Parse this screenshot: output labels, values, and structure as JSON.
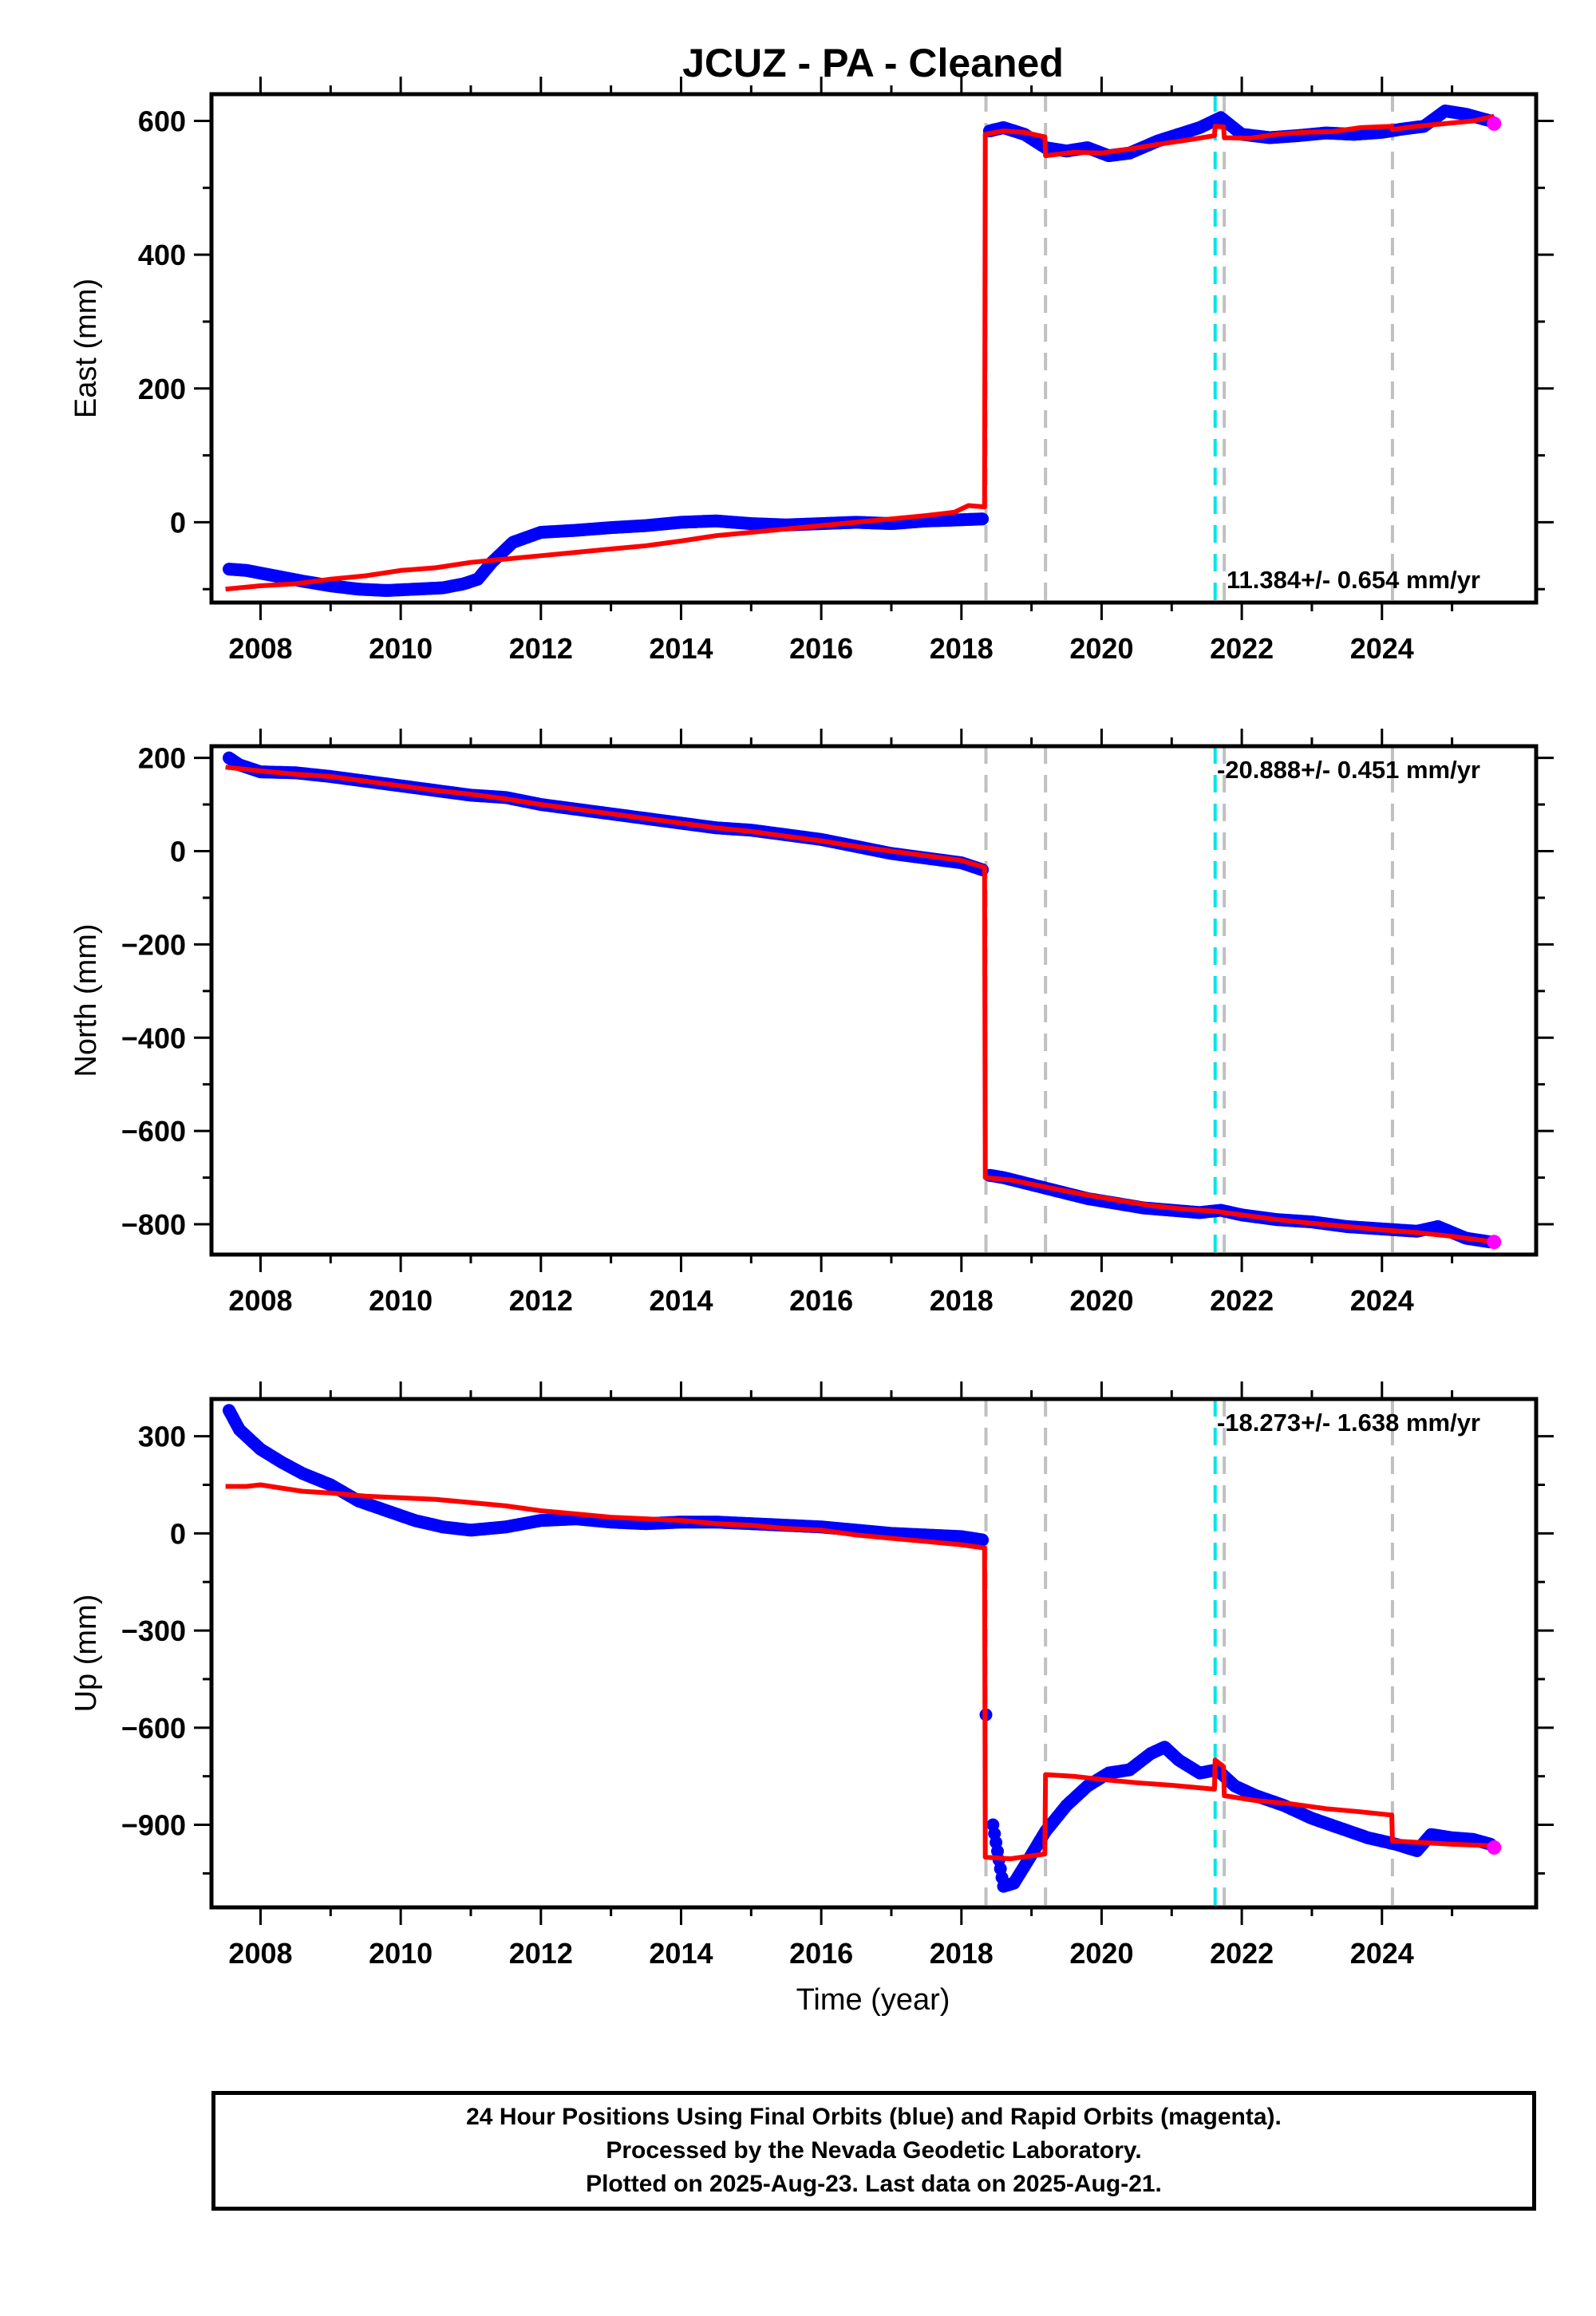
{
  "title": "JCUZ  - PA - Cleaned",
  "xlabel": "Time (year)",
  "footer": {
    "line1": "24 Hour Positions Using Final Orbits (blue) and Rapid Orbits (magenta).",
    "line2": "Processed by the Nevada Geodetic Laboratory.",
    "line3": "Plotted on 2025-Aug-23. Last data on 2025-Aug-21."
  },
  "colors": {
    "data": "#0000ff",
    "model": "#ff0000",
    "rapid": "#ff00ff",
    "equipment_change": "#c0c0c0",
    "earthquake": "#00e5e5"
  },
  "chart_data": [
    {
      "type": "scatter",
      "panel": "east",
      "ylabel": "East (mm)",
      "xlim": [
        2007.3,
        2026.2
      ],
      "ylim": [
        -120,
        640
      ],
      "xticks": [
        2008,
        2010,
        2012,
        2014,
        2016,
        2018,
        2020,
        2022,
        2024
      ],
      "yticks": [
        0,
        200,
        400,
        600
      ],
      "ytick_labels": [
        "0",
        "200",
        "400",
        "600"
      ],
      "rate_text": "11.384+/- 0.654 mm/yr",
      "rate_position": "bottom-right",
      "equipment_changes": [
        2018.35,
        2019.2,
        2021.75,
        2024.15
      ],
      "earthquakes": [
        2021.62
      ],
      "series": [
        {
          "role": "data",
          "x": [
            2007.55,
            2007.8,
            2008.2,
            2008.6,
            2009.0,
            2009.4,
            2009.8,
            2010.2,
            2010.6,
            2010.9,
            2011.1,
            2011.3,
            2011.6,
            2012.0,
            2012.5,
            2013.0,
            2013.5,
            2014.0,
            2014.5,
            2015.0,
            2015.5,
            2016.0,
            2016.5,
            2017.0,
            2017.5,
            2017.8,
            2018.3,
            2018.4,
            2018.6,
            2018.9,
            2019.2,
            2019.5,
            2019.8,
            2020.1,
            2020.4,
            2020.8,
            2021.1,
            2021.4,
            2021.7,
            2022.0,
            2022.4,
            2022.8,
            2023.2,
            2023.6,
            2024.0,
            2024.3,
            2024.6,
            2024.9,
            2025.2,
            2025.55
          ],
          "y": [
            -70,
            -72,
            -80,
            -88,
            -95,
            -100,
            -102,
            -100,
            -98,
            -92,
            -85,
            -60,
            -30,
            -15,
            -12,
            -8,
            -5,
            0,
            2,
            -2,
            -4,
            -2,
            0,
            -2,
            2,
            3,
            5,
            585,
            590,
            580,
            560,
            555,
            560,
            548,
            552,
            570,
            580,
            590,
            605,
            580,
            575,
            578,
            582,
            580,
            583,
            588,
            592,
            615,
            610,
            600
          ]
        },
        {
          "role": "rapid",
          "x": [
            2025.6
          ],
          "y": [
            596
          ]
        },
        {
          "role": "model",
          "x": [
            2007.5,
            2008.0,
            2008.5,
            2009.0,
            2009.5,
            2010.0,
            2010.5,
            2011.0,
            2011.5,
            2012.0,
            2012.5,
            2013.0,
            2013.5,
            2014.0,
            2014.5,
            2015.0,
            2015.5,
            2016.0,
            2016.5,
            2017.0,
            2017.5,
            2017.9,
            2018.1,
            2018.33,
            2018.34,
            2018.6,
            2018.9,
            2019.19,
            2019.2,
            2019.6,
            2020.0,
            2020.4,
            2020.8,
            2021.2,
            2021.61,
            2021.62,
            2021.74,
            2021.75,
            2022.1,
            2022.5,
            2022.9,
            2023.3,
            2023.7,
            2024.14,
            2024.15,
            2024.5,
            2024.9,
            2025.3,
            2025.6
          ],
          "y": [
            -100,
            -95,
            -92,
            -85,
            -80,
            -72,
            -68,
            -60,
            -55,
            -50,
            -45,
            -40,
            -35,
            -28,
            -20,
            -15,
            -10,
            -5,
            0,
            5,
            10,
            15,
            25,
            23,
            580,
            585,
            583,
            576,
            548,
            553,
            552,
            558,
            565,
            571,
            578,
            592,
            591,
            575,
            574,
            580,
            583,
            584,
            590,
            592,
            587,
            592,
            596,
            600,
            607
          ]
        }
      ]
    },
    {
      "type": "scatter",
      "panel": "north",
      "ylabel": "North (mm)",
      "xlim": [
        2007.3,
        2026.2
      ],
      "ylim": [
        -865,
        225
      ],
      "xticks": [
        2008,
        2010,
        2012,
        2014,
        2016,
        2018,
        2020,
        2022,
        2024
      ],
      "yticks": [
        -800,
        -600,
        -400,
        -200,
        0,
        200
      ],
      "ytick_labels": [
        "−800",
        "−600",
        "−400",
        "−200",
        "0",
        "200"
      ],
      "rate_text": "-20.888+/- 0.451 mm/yr",
      "rate_position": "top-right",
      "equipment_changes": [
        2018.35,
        2019.2,
        2021.75,
        2024.15
      ],
      "earthquakes": [
        2021.62
      ],
      "series": [
        {
          "role": "data",
          "x": [
            2007.55,
            2007.7,
            2008.0,
            2008.5,
            2009.0,
            2009.5,
            2010.0,
            2010.5,
            2011.0,
            2011.5,
            2012.0,
            2012.5,
            2013.0,
            2013.5,
            2014.0,
            2014.5,
            2015.0,
            2015.5,
            2016.0,
            2016.5,
            2017.0,
            2017.5,
            2018.0,
            2018.3,
            2018.4,
            2018.6,
            2019.0,
            2019.4,
            2019.8,
            2020.2,
            2020.6,
            2021.0,
            2021.4,
            2021.7,
            2022.0,
            2022.5,
            2023.0,
            2023.5,
            2024.0,
            2024.5,
            2024.8,
            2025.2,
            2025.55
          ],
          "y": [
            200,
            185,
            170,
            168,
            160,
            150,
            140,
            130,
            120,
            115,
            100,
            90,
            80,
            70,
            60,
            50,
            45,
            35,
            25,
            10,
            -5,
            -15,
            -25,
            -40,
            -695,
            -700,
            -715,
            -730,
            -745,
            -755,
            -765,
            -770,
            -775,
            -770,
            -780,
            -790,
            -795,
            -805,
            -810,
            -815,
            -805,
            -830,
            -838
          ]
        },
        {
          "role": "rapid",
          "x": [
            2025.6
          ],
          "y": [
            -838
          ]
        },
        {
          "role": "model",
          "x": [
            2007.5,
            2008.0,
            2008.5,
            2009.0,
            2009.5,
            2010.0,
            2010.5,
            2011.0,
            2011.5,
            2012.0,
            2012.5,
            2013.0,
            2013.5,
            2014.0,
            2014.5,
            2015.0,
            2015.5,
            2016.0,
            2016.5,
            2017.0,
            2017.5,
            2018.0,
            2018.33,
            2018.34,
            2018.7,
            2019.2,
            2019.7,
            2020.2,
            2020.7,
            2021.2,
            2021.62,
            2022.0,
            2022.5,
            2023.0,
            2023.5,
            2024.0,
            2024.5,
            2025.0,
            2025.6
          ],
          "y": [
            180,
            172,
            165,
            160,
            150,
            140,
            130,
            122,
            112,
            100,
            90,
            80,
            70,
            60,
            50,
            42,
            32,
            22,
            10,
            0,
            -10,
            -20,
            -35,
            -700,
            -705,
            -720,
            -735,
            -748,
            -760,
            -768,
            -772,
            -780,
            -790,
            -798,
            -805,
            -812,
            -818,
            -826,
            -838
          ]
        }
      ]
    },
    {
      "type": "scatter",
      "panel": "up",
      "ylabel": "Up (mm)",
      "xlim": [
        2007.3,
        2026.2
      ],
      "ylim": [
        -1155,
        415
      ],
      "xticks": [
        2008,
        2010,
        2012,
        2014,
        2016,
        2018,
        2020,
        2022,
        2024
      ],
      "yticks": [
        -900,
        -600,
        -300,
        0,
        300
      ],
      "ytick_labels": [
        "−900",
        "−600",
        "−300",
        "0",
        "300"
      ],
      "rate_text": "-18.273+/- 1.638 mm/yr",
      "rate_position": "top-right",
      "equipment_changes": [
        2018.35,
        2019.2,
        2021.75,
        2024.15
      ],
      "earthquakes": [
        2021.62
      ],
      "series": [
        {
          "role": "data",
          "x": [
            2007.55,
            2007.7,
            2008.0,
            2008.3,
            2008.6,
            2009.0,
            2009.4,
            2009.8,
            2010.2,
            2010.6,
            2011.0,
            2011.5,
            2012.0,
            2012.5,
            2013.0,
            2013.5,
            2014.0,
            2014.5,
            2015.0,
            2015.5,
            2016.0,
            2016.5,
            2017.0,
            2017.5,
            2018.0,
            2018.3,
            2018.35,
            2018.45,
            2018.6,
            2018.75,
            2018.95,
            2019.2,
            2019.5,
            2019.8,
            2020.1,
            2020.4,
            2020.7,
            2020.9,
            2021.1,
            2021.4,
            2021.65,
            2021.9,
            2022.2,
            2022.6,
            2023.0,
            2023.4,
            2023.8,
            2024.2,
            2024.5,
            2024.7,
            2025.0,
            2025.3,
            2025.55
          ],
          "y": [
            380,
            320,
            260,
            220,
            185,
            150,
            100,
            70,
            40,
            20,
            10,
            20,
            40,
            45,
            35,
            30,
            35,
            35,
            30,
            25,
            20,
            10,
            0,
            -5,
            -10,
            -20,
            -560,
            -900,
            -1090,
            -1080,
            -1010,
            -920,
            -840,
            -780,
            -740,
            -730,
            -680,
            -660,
            -700,
            -740,
            -730,
            -780,
            -810,
            -840,
            -880,
            -910,
            -940,
            -960,
            -980,
            -930,
            -940,
            -945,
            -960
          ]
        },
        {
          "role": "rapid",
          "x": [
            2025.6
          ],
          "y": [
            -970
          ]
        },
        {
          "role": "model",
          "x": [
            2007.5,
            2007.8,
            2008.0,
            2008.3,
            2008.6,
            2009.0,
            2009.5,
            2010.0,
            2010.5,
            2011.0,
            2011.5,
            2012.0,
            2012.5,
            2013.0,
            2013.5,
            2014.0,
            2014.5,
            2015.0,
            2015.5,
            2016.0,
            2016.5,
            2017.0,
            2017.5,
            2018.0,
            2018.33,
            2018.34,
            2018.7,
            2019.19,
            2019.2,
            2019.6,
            2020.0,
            2020.5,
            2021.0,
            2021.61,
            2021.62,
            2021.74,
            2021.75,
            2022.2,
            2022.7,
            2023.2,
            2023.7,
            2024.14,
            2024.15,
            2024.6,
            2025.0,
            2025.6
          ],
          "y": [
            145,
            145,
            150,
            140,
            130,
            125,
            115,
            110,
            105,
            95,
            85,
            70,
            60,
            50,
            45,
            40,
            30,
            25,
            15,
            10,
            -5,
            -15,
            -25,
            -35,
            -45,
            -1000,
            -1005,
            -990,
            -745,
            -750,
            -760,
            -770,
            -778,
            -790,
            -700,
            -720,
            -810,
            -825,
            -835,
            -850,
            -860,
            -870,
            -950,
            -955,
            -960,
            -965
          ]
        }
      ]
    }
  ]
}
